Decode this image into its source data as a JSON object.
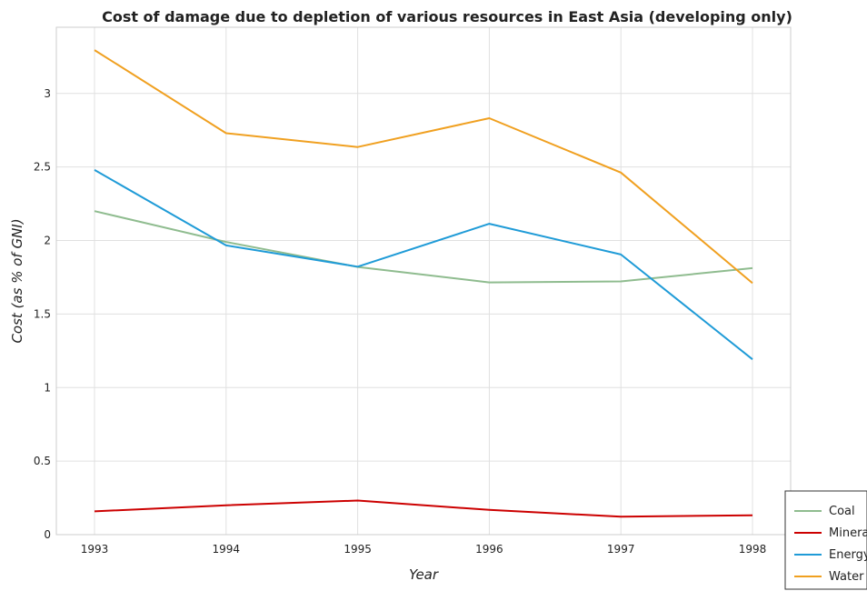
{
  "chart_data": {
    "type": "line",
    "title": "Cost of damage due to depletion of various resources in East Asia (developing only)",
    "xlabel": "Year",
    "ylabel": "Cost (as % of GNI)",
    "categories": [
      "1993",
      "1994",
      "1995",
      "1996",
      "1997",
      "1998"
    ],
    "ylim": [
      0,
      3.45
    ],
    "yticks": [
      0,
      0.5,
      1,
      1.5,
      2,
      2.5,
      3
    ],
    "ytick_labels": [
      "0",
      "0.5",
      "1",
      "1.5",
      "2",
      "2.5",
      "3"
    ],
    "grid": true,
    "legend_position": "bottom-right",
    "series": [
      {
        "name": "Coal",
        "color": "#8fbc8f",
        "values": [
          2.2,
          1.99,
          1.82,
          1.715,
          1.722,
          1.812
        ]
      },
      {
        "name": "Minerals",
        "color": "#cc0000",
        "values": [
          0.158,
          0.2,
          0.232,
          0.168,
          0.122,
          0.132
        ]
      },
      {
        "name": "Energy",
        "color": "#1f9bd7",
        "values": [
          2.48,
          1.967,
          1.822,
          2.114,
          1.905,
          1.192
        ]
      },
      {
        "name": "Water",
        "color": "#f0a020",
        "values": [
          3.295,
          2.73,
          2.636,
          2.832,
          2.462,
          1.71
        ]
      }
    ]
  }
}
